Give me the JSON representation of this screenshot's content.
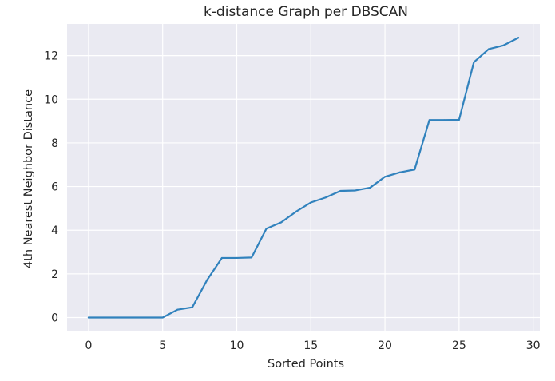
{
  "chart_data": {
    "type": "line",
    "title": "k-distance Graph per DBSCAN",
    "xlabel": "Sorted Points",
    "ylabel": "4th Nearest Neighbor Distance",
    "xlim": [
      -1.45,
      30.45
    ],
    "ylim": [
      -0.64,
      13.45
    ],
    "x_ticks": [
      0,
      5,
      10,
      15,
      20,
      25,
      30
    ],
    "y_ticks": [
      0,
      2,
      4,
      6,
      8,
      10,
      12
    ],
    "grid": true,
    "background_color": "#eaeaf2",
    "grid_color": "#ffffff",
    "series": [
      {
        "color": "#3182bd",
        "x": [
          0,
          1,
          2,
          3,
          4,
          5,
          6,
          7,
          8,
          9,
          10,
          11,
          12,
          13,
          14,
          15,
          16,
          17,
          18,
          19,
          20,
          21,
          22,
          23,
          24,
          25,
          26,
          27,
          28,
          29
        ],
        "values": [
          0.0,
          0.0,
          0.0,
          0.0,
          0.0,
          0.0,
          0.36,
          0.47,
          1.72,
          2.73,
          2.73,
          2.75,
          4.07,
          4.36,
          4.85,
          5.27,
          5.5,
          5.8,
          5.82,
          5.95,
          6.45,
          6.65,
          6.78,
          9.05,
          9.05,
          9.06,
          11.7,
          12.3,
          12.47,
          12.82
        ]
      }
    ]
  }
}
